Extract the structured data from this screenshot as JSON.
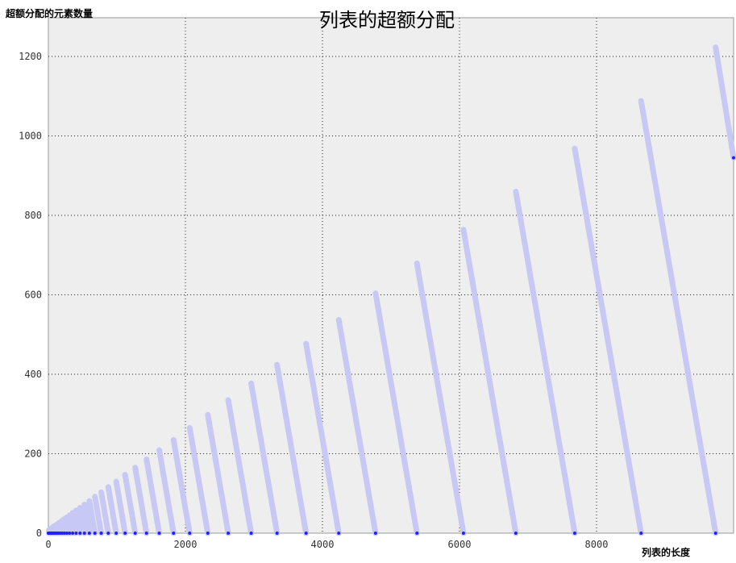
{
  "chart_data": {
    "type": "line",
    "title": "列表的超额分配",
    "xlabel": "列表的长度",
    "ylabel": "超额分配的元素数量",
    "xlim": [
      0,
      10000
    ],
    "ylim": [
      0,
      1300
    ],
    "xticks": [
      0,
      2000,
      4000,
      6000,
      8000
    ],
    "yticks": [
      0,
      200,
      400,
      600,
      800,
      1000,
      1200
    ],
    "grid": true,
    "background": "#eeeeee",
    "line_color": "#c8c8f4",
    "marker_color": "#2020ff",
    "resize_points": [
      0,
      4,
      8,
      16,
      25,
      35,
      46,
      58,
      72,
      88,
      106,
      126,
      148,
      173,
      201,
      233,
      269,
      309,
      354,
      405,
      462,
      526,
      598,
      679,
      771,
      874,
      990,
      1120,
      1267,
      1432,
      1618,
      1827,
      2062,
      2327,
      2625,
      2960,
      3337,
      3761,
      4238,
      4775,
      5379,
      6058,
      6822,
      7682,
      8650,
      9738
    ],
    "series": [
      {
        "note_x_is_list_length_y_is_spare_slots": "",
        "values": [
          {
            "x": 0,
            "y": 0
          },
          {
            "x": 4,
            "y": 4
          },
          {
            "x": 8,
            "y": 8
          },
          {
            "x": 16,
            "y": 9
          },
          {
            "x": 25,
            "y": 10
          },
          {
            "x": 35,
            "y": 11
          },
          {
            "x": 46,
            "y": 12
          },
          {
            "x": 58,
            "y": 14
          },
          {
            "x": 72,
            "y": 16
          },
          {
            "x": 88,
            "y": 18
          },
          {
            "x": 106,
            "y": 20
          },
          {
            "x": 126,
            "y": 22
          },
          {
            "x": 148,
            "y": 25
          },
          {
            "x": 173,
            "y": 28
          },
          {
            "x": 201,
            "y": 32
          },
          {
            "x": 233,
            "y": 36
          },
          {
            "x": 269,
            "y": 40
          },
          {
            "x": 309,
            "y": 45
          },
          {
            "x": 354,
            "y": 51
          },
          {
            "x": 405,
            "y": 57
          },
          {
            "x": 462,
            "y": 64
          },
          {
            "x": 526,
            "y": 72
          },
          {
            "x": 598,
            "y": 81
          },
          {
            "x": 679,
            "y": 92
          },
          {
            "x": 771,
            "y": 103
          },
          {
            "x": 874,
            "y": 116
          },
          {
            "x": 990,
            "y": 130
          },
          {
            "x": 1120,
            "y": 147
          },
          {
            "x": 1267,
            "y": 165
          },
          {
            "x": 1432,
            "y": 186
          },
          {
            "x": 1618,
            "y": 209
          },
          {
            "x": 1827,
            "y": 235
          },
          {
            "x": 2062,
            "y": 265
          },
          {
            "x": 2327,
            "y": 298
          },
          {
            "x": 2625,
            "y": 335
          },
          {
            "x": 2960,
            "y": 377
          },
          {
            "x": 3337,
            "y": 424
          },
          {
            "x": 3761,
            "y": 477
          },
          {
            "x": 4238,
            "y": 537
          },
          {
            "x": 4775,
            "y": 604
          },
          {
            "x": 5379,
            "y": 679
          },
          {
            "x": 6058,
            "y": 764
          },
          {
            "x": 6822,
            "y": 860
          },
          {
            "x": 7682,
            "y": 968
          },
          {
            "x": 8650,
            "y": 1088
          },
          {
            "x": 9738,
            "y": 1223
          },
          {
            "x": 10000,
            "y": 945
          }
        ]
      }
    ]
  }
}
